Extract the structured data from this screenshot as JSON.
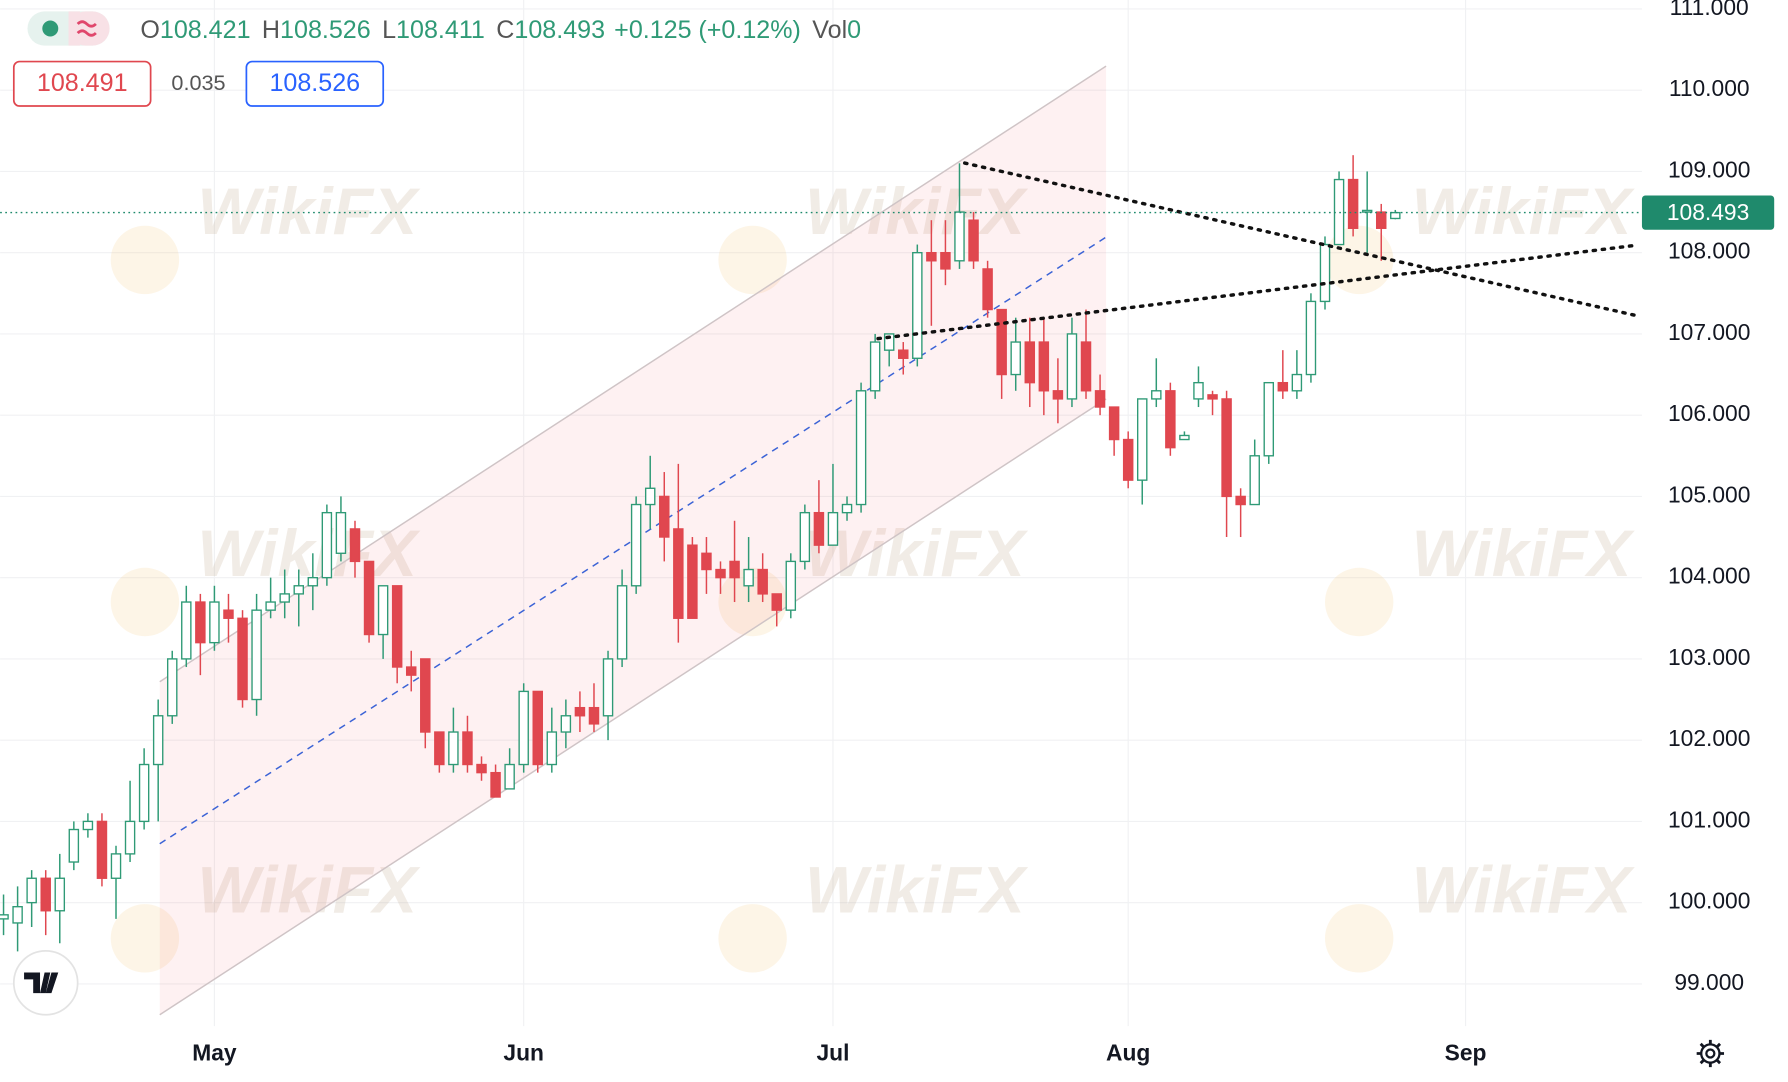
{
  "header": {
    "o_label": "O",
    "h_label": "H",
    "l_label": "L",
    "c_label": "C",
    "change": "+0.125",
    "change_percent": "(+0.12%)",
    "vol_label": "Vol",
    "volume": "0"
  },
  "trade_panel": {
    "sell": "108.491",
    "spread": "0.035",
    "buy": "108.526"
  },
  "watermark": "WikiFX",
  "chart_data": {
    "type": "candlestick",
    "categories": [
      null,
      null,
      null,
      null,
      null,
      null,
      null,
      null,
      null,
      null,
      null,
      null,
      null,
      null,
      null,
      "May",
      null,
      null,
      null,
      null,
      null,
      null,
      null,
      null,
      null,
      null,
      null,
      null,
      null,
      null,
      null,
      null,
      null,
      null,
      null,
      null,
      null,
      "Jun",
      null,
      null,
      null,
      null,
      null,
      null,
      null,
      null,
      null,
      null,
      null,
      null,
      null,
      null,
      null,
      null,
      null,
      null,
      null,
      null,
      null,
      "Jul",
      null,
      null,
      null,
      null,
      null,
      null,
      null,
      null,
      null,
      null,
      null,
      null,
      null,
      null,
      null,
      null,
      null,
      null,
      null,
      null,
      "Aug",
      null,
      null,
      null,
      null,
      null,
      null,
      null,
      null,
      null,
      null,
      null,
      null,
      null,
      null,
      null,
      null,
      null,
      null,
      null,
      null,
      null,
      null,
      null,
      "Sep",
      null,
      null,
      null,
      null,
      null,
      null,
      null,
      null,
      null,
      null,
      null,
      null
    ],
    "open": [
      99.8,
      99.75,
      100.0,
      100.3,
      99.9,
      100.5,
      100.9,
      101.0,
      100.3,
      100.6,
      101.0,
      101.7,
      102.3,
      103.0,
      103.7,
      103.2,
      103.6,
      103.5,
      102.5,
      103.6,
      103.7,
      103.8,
      103.9,
      104.0,
      104.3,
      104.6,
      104.2,
      103.3,
      103.9,
      102.9,
      103.0,
      102.1,
      101.7,
      102.1,
      101.7,
      101.6,
      101.4,
      101.7,
      102.6,
      101.7,
      102.1,
      102.4,
      102.4,
      102.3,
      103.0,
      103.9,
      104.9,
      105.0,
      104.6,
      104.4,
      104.3,
      104.1,
      104.2,
      103.9,
      104.1,
      103.8,
      103.6,
      104.2,
      104.8,
      104.4,
      104.8,
      104.9,
      106.3,
      106.8,
      106.8,
      106.7,
      108.0,
      108.0,
      107.9,
      108.4,
      107.8,
      107.3,
      106.5,
      106.9,
      106.9,
      106.3,
      106.2,
      106.9,
      106.3,
      106.1,
      105.7,
      105.2,
      106.2,
      106.3,
      105.7,
      106.2,
      106.25,
      106.2,
      105.0,
      104.9,
      105.5,
      106.4,
      106.3,
      106.5,
      107.4,
      108.1,
      108.9,
      108.5,
      108.5,
      108.421,
      null,
      null,
      null,
      null,
      null,
      null,
      null,
      null,
      null,
      null,
      null,
      null,
      null,
      null,
      null,
      null,
      null
    ],
    "high": [
      100.1,
      100.2,
      100.4,
      100.4,
      100.6,
      101.0,
      101.1,
      101.1,
      100.7,
      101.5,
      101.9,
      102.5,
      103.1,
      103.9,
      103.8,
      103.9,
      103.8,
      103.6,
      103.8,
      104.0,
      104.1,
      104.1,
      104.3,
      104.9,
      105.0,
      104.7,
      104.2,
      103.9,
      103.9,
      103.1,
      103.0,
      102.1,
      102.4,
      102.3,
      101.8,
      101.7,
      101.9,
      102.7,
      102.6,
      102.4,
      102.5,
      102.6,
      102.7,
      103.1,
      104.1,
      105.0,
      105.5,
      105.3,
      105.4,
      104.5,
      104.5,
      104.2,
      104.7,
      104.5,
      104.3,
      103.8,
      104.3,
      104.9,
      105.2,
      105.4,
      105.0,
      106.4,
      107.0,
      107.0,
      106.9,
      108.1,
      108.4,
      108.4,
      109.1,
      108.5,
      107.9,
      107.3,
      107.2,
      107.2,
      107.2,
      106.7,
      107.2,
      107.3,
      106.5,
      106.1,
      105.8,
      106.2,
      106.7,
      106.4,
      105.8,
      106.6,
      106.3,
      106.3,
      105.1,
      105.7,
      106.4,
      106.8,
      106.8,
      107.5,
      108.2,
      109.0,
      109.2,
      109.0,
      108.6,
      108.526,
      null,
      null,
      null,
      null,
      null,
      null,
      null,
      null,
      null,
      null,
      null,
      null,
      null,
      null,
      null,
      null,
      null
    ],
    "low": [
      99.6,
      99.4,
      99.7,
      99.6,
      99.5,
      100.4,
      100.8,
      100.2,
      99.8,
      100.5,
      100.9,
      101.0,
      102.2,
      102.9,
      102.8,
      103.1,
      103.2,
      102.4,
      102.3,
      103.5,
      103.5,
      103.4,
      103.6,
      103.9,
      104.2,
      104.0,
      103.2,
      103.0,
      102.7,
      102.6,
      101.9,
      101.6,
      101.6,
      101.6,
      101.5,
      101.3,
      101.4,
      101.6,
      101.6,
      101.6,
      101.9,
      102.1,
      102.1,
      102.0,
      102.9,
      103.8,
      104.6,
      104.2,
      103.2,
      103.5,
      103.8,
      103.8,
      103.7,
      103.7,
      103.7,
      103.4,
      103.5,
      104.1,
      104.3,
      104.4,
      104.7,
      104.8,
      106.2,
      106.6,
      106.5,
      106.6,
      107.1,
      107.6,
      107.8,
      107.8,
      107.2,
      106.2,
      106.3,
      106.1,
      106.0,
      105.9,
      106.1,
      106.2,
      106.0,
      105.5,
      105.1,
      104.9,
      106.1,
      105.5,
      105.7,
      106.1,
      106.0,
      104.5,
      104.5,
      104.9,
      105.4,
      106.2,
      106.2,
      106.4,
      107.3,
      108.1,
      108.2,
      108.0,
      107.9,
      108.411,
      null,
      null,
      null,
      null,
      null,
      null,
      null,
      null,
      null,
      null,
      null,
      null,
      null,
      null,
      null,
      null,
      null
    ],
    "close": [
      99.85,
      99.95,
      100.3,
      99.9,
      100.3,
      100.9,
      101.0,
      100.3,
      100.6,
      101.0,
      101.7,
      102.3,
      103.0,
      103.7,
      103.2,
      103.7,
      103.5,
      102.5,
      103.6,
      103.7,
      103.8,
      103.9,
      104.0,
      104.8,
      104.8,
      104.2,
      103.3,
      103.9,
      102.9,
      102.8,
      102.1,
      101.7,
      102.1,
      101.7,
      101.6,
      101.3,
      101.7,
      102.6,
      101.7,
      102.1,
      102.3,
      102.3,
      102.2,
      103.0,
      103.9,
      104.9,
      105.1,
      104.5,
      103.5,
      103.5,
      104.1,
      104.0,
      104.0,
      104.1,
      103.8,
      103.6,
      104.2,
      104.8,
      104.4,
      104.8,
      104.9,
      106.3,
      106.9,
      107.0,
      106.7,
      108.0,
      107.9,
      107.8,
      108.5,
      107.9,
      107.3,
      106.5,
      106.9,
      106.4,
      106.3,
      106.2,
      107.0,
      106.3,
      106.1,
      105.7,
      105.2,
      106.2,
      106.3,
      105.6,
      105.75,
      106.4,
      106.2,
      105.0,
      104.9,
      105.5,
      106.4,
      106.3,
      106.5,
      107.4,
      108.1,
      108.9,
      108.3,
      108.52,
      108.3,
      108.493,
      null,
      null,
      null,
      null,
      null,
      null,
      null,
      null,
      null,
      null,
      null,
      null,
      null,
      null,
      null,
      null,
      null
    ],
    "up_color": "#2f9a76",
    "down_color": "#e0474f",
    "price_line_color": "#1f8a6c",
    "ylim": [
      98.48,
      111.11
    ],
    "yticks": [
      {
        "value": 99,
        "label": "99.000"
      },
      {
        "value": 100,
        "label": "100.000"
      },
      {
        "value": 101,
        "label": "101.000"
      },
      {
        "value": 102,
        "label": "102.000"
      },
      {
        "value": 103,
        "label": "103.000"
      },
      {
        "value": 104,
        "label": "104.000"
      },
      {
        "value": 105,
        "label": "105.000"
      },
      {
        "value": 106,
        "label": "106.000"
      },
      {
        "value": 107,
        "label": "107.000"
      },
      {
        "value": 108,
        "label": "108.000"
      },
      {
        "value": 109,
        "label": "109.000"
      },
      {
        "value": 110,
        "label": "110.000"
      },
      {
        "value": 111,
        "label": "111.000"
      }
    ],
    "grid": true
  }
}
